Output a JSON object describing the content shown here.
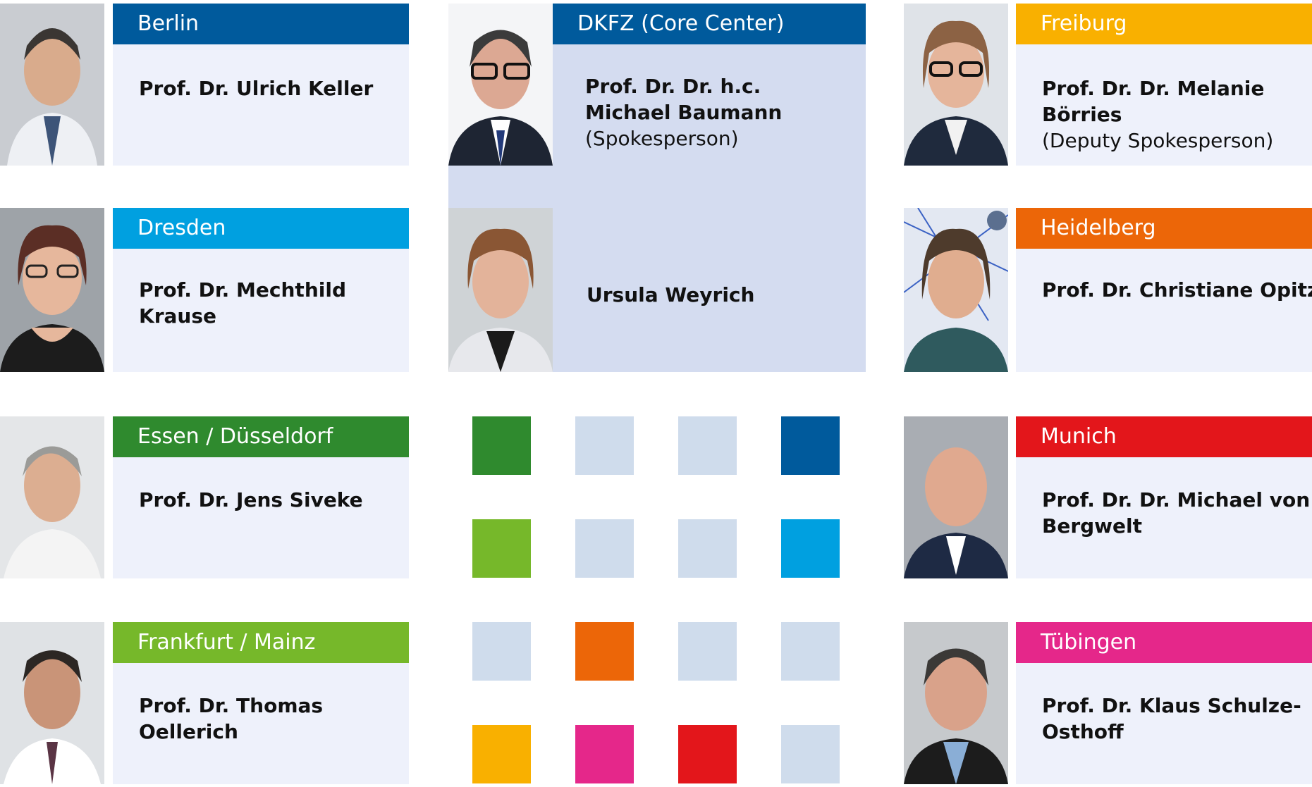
{
  "colors": {
    "berlin": "#005a9c",
    "dresden": "#00a0e0",
    "essen": "#2f8a2e",
    "frankfurt": "#76b82a",
    "core": "#005a9c",
    "freiburg": "#f9b000",
    "heidelberg": "#ec6608",
    "munich": "#e3161b",
    "tuebingen": "#e5278a",
    "neutral": "#cfdcec",
    "panel": "#eef1fb",
    "core_panel": "#d4dcf0"
  },
  "sites": {
    "berlin": {
      "city": "Berlin",
      "person": "Prof. Dr. Ulrich Keller",
      "photo_icon": "portrait-icon"
    },
    "dresden": {
      "city": "Dresden",
      "person": "Prof. Dr. Mechthild Krause",
      "photo_icon": "portrait-icon"
    },
    "essen": {
      "city": "Essen / Düsseldorf",
      "person": "Prof. Dr. Jens Siveke",
      "photo_icon": "portrait-icon"
    },
    "frankfurt": {
      "city": "Frankfurt / Mainz",
      "person": "Prof. Dr. Thomas Oellerich",
      "photo_icon": "portrait-icon"
    },
    "core": {
      "city": "DKFZ (Core Center)",
      "person": "Prof. Dr. Dr. h.c. Michael Baumann",
      "role": "(Spokesperson)",
      "second_person": "Ursula Weyrich",
      "photo_icon": "portrait-icon"
    },
    "freiburg": {
      "city": "Freiburg",
      "person": "Prof. Dr. Dr. Melanie Börries",
      "role": "(Deputy Spokesperson)",
      "photo_icon": "portrait-icon"
    },
    "heidelberg": {
      "city": "Heidelberg",
      "person": "Prof. Dr. Christiane Opitz",
      "photo_icon": "portrait-icon"
    },
    "munich": {
      "city": "Munich",
      "person": "Prof. Dr. Dr. Michael von Bergwelt",
      "photo_icon": "portrait-icon"
    },
    "tuebingen": {
      "city": "Tübingen",
      "person": "Prof. Dr. Klaus Schulze-Osthoff",
      "photo_icon": "portrait-icon"
    }
  },
  "color_grid": [
    [
      "#2f8a2e",
      "#cfdcec",
      "#cfdcec",
      "#005a9c"
    ],
    [
      "#76b82a",
      "#cfdcec",
      "#cfdcec",
      "#00a0e0"
    ],
    [
      "#cfdcec",
      "#ec6608",
      "#cfdcec",
      "#cfdcec"
    ],
    [
      "#f9b000",
      "#e5278a",
      "#e3161b",
      "#cfdcec"
    ]
  ]
}
